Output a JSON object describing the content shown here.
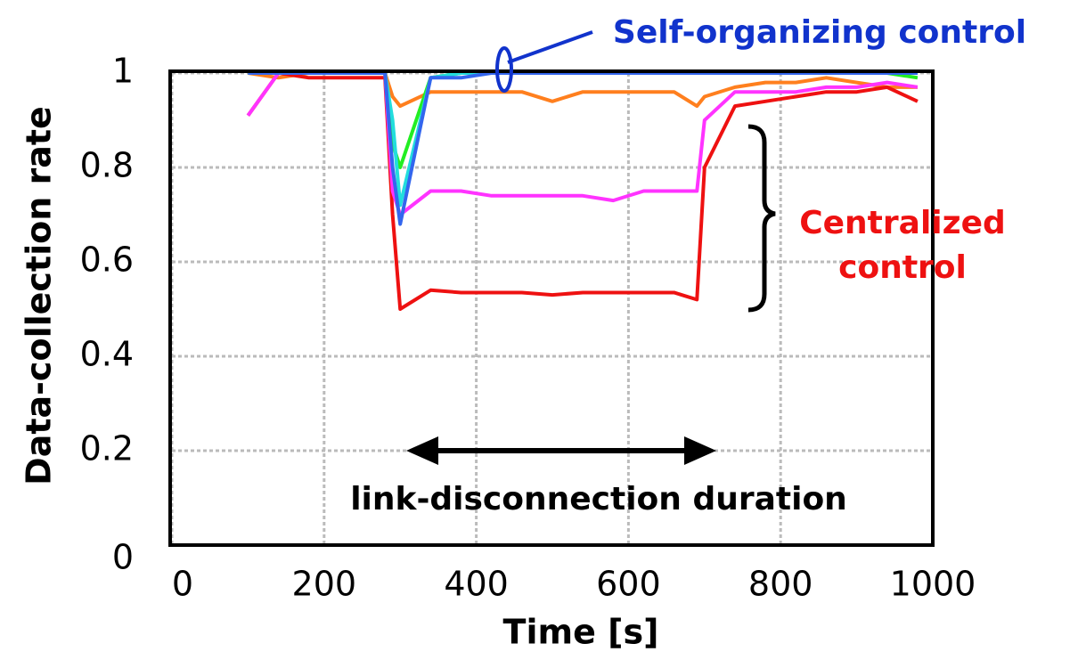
{
  "chart_data": {
    "type": "line",
    "x_label": "Time [s]",
    "y_label": "Data-collection rate",
    "x": [
      100,
      140,
      180,
      220,
      260,
      280,
      290,
      300,
      340,
      380,
      420,
      460,
      500,
      540,
      580,
      620,
      660,
      690,
      700,
      740,
      780,
      820,
      860,
      900,
      940,
      980
    ],
    "series": [
      {
        "color": "#ff7f1e",
        "values": [
          1.0,
          0.99,
          1.0,
          1.0,
          1.0,
          1.0,
          0.95,
          0.93,
          0.96,
          0.96,
          0.96,
          0.96,
          0.94,
          0.96,
          0.96,
          0.96,
          0.96,
          0.93,
          0.95,
          0.97,
          0.98,
          0.98,
          0.99,
          0.98,
          0.97,
          0.97
        ]
      },
      {
        "color": "#ee1111",
        "values": [
          0.91,
          1.0,
          0.99,
          0.99,
          0.99,
          0.99,
          0.7,
          0.5,
          0.54,
          0.535,
          0.535,
          0.535,
          0.53,
          0.535,
          0.535,
          0.535,
          0.535,
          0.52,
          0.8,
          0.93,
          0.94,
          0.95,
          0.96,
          0.96,
          0.97,
          0.94
        ]
      },
      {
        "color": "#ff33ff",
        "values": [
          0.91,
          1.0,
          1.0,
          1.0,
          1.0,
          1.0,
          0.75,
          0.7,
          0.75,
          0.75,
          0.74,
          0.74,
          0.74,
          0.74,
          0.73,
          0.75,
          0.75,
          0.75,
          0.9,
          0.96,
          0.96,
          0.96,
          0.97,
          0.97,
          0.98,
          0.97
        ]
      },
      {
        "color": "#22ee22",
        "values": [
          1.0,
          1.0,
          1.0,
          1.0,
          1.0,
          1.0,
          0.85,
          0.8,
          0.99,
          1.0,
          1.0,
          1.0,
          1.0,
          1.0,
          1.0,
          1.0,
          1.0,
          1.0,
          1.0,
          1.0,
          1.0,
          1.0,
          1.0,
          1.0,
          1.0,
          0.99
        ]
      },
      {
        "color": "#22dddd",
        "values": [
          1.0,
          1.0,
          1.0,
          1.0,
          1.0,
          1.0,
          0.9,
          0.72,
          0.99,
          1.0,
          1.0,
          1.0,
          1.0,
          1.0,
          1.0,
          1.0,
          1.0,
          1.0,
          1.0,
          1.0,
          1.0,
          1.0,
          1.0,
          1.0,
          1.0,
          1.0
        ]
      },
      {
        "color": "#3366ee",
        "values": [
          1.0,
          1.0,
          1.0,
          1.0,
          1.0,
          1.0,
          0.8,
          0.68,
          0.99,
          0.99,
          1.0,
          1.0,
          1.0,
          1.0,
          1.0,
          1.0,
          1.0,
          1.0,
          1.0,
          1.0,
          1.0,
          1.0,
          1.0,
          1.0,
          1.0,
          1.0
        ]
      }
    ],
    "xlim": [
      0,
      1000
    ],
    "xticks": [
      0,
      200,
      400,
      600,
      800,
      1000
    ],
    "ylim": [
      0,
      1
    ],
    "yticks": [
      0,
      0.2,
      0.4,
      0.6,
      0.8,
      1
    ],
    "grid": true,
    "annotations": {
      "self_organizing": "Self-organizing control",
      "centralized": [
        "Centralized",
        "control"
      ],
      "duration": "link-disconnection duration"
    }
  }
}
